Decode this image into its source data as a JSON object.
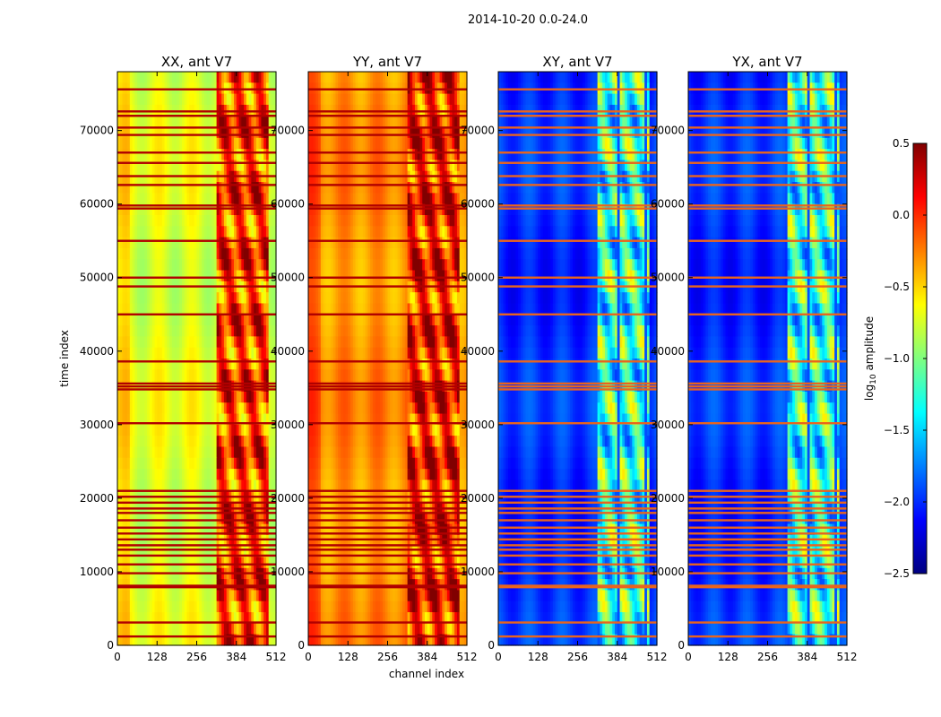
{
  "chart_data": {
    "type": "heatmap",
    "suptitle": "2014-10-20 0.0-24.0",
    "xlabel": "channel index",
    "ylabel": "time index",
    "xlim": [
      0,
      512
    ],
    "ylim": [
      0,
      78000
    ],
    "xticks": [
      0,
      128,
      256,
      384,
      512
    ],
    "yticks": [
      0,
      10000,
      20000,
      30000,
      40000,
      50000,
      60000,
      70000
    ],
    "colormap": "jet",
    "colorbar": {
      "label": "log10 amplitude",
      "label_base": "log",
      "label_sub": "10",
      "label_rest": " amplitude",
      "range": [
        -2.5,
        0.5
      ],
      "ticks": [
        "0.5",
        "0.0",
        "−0.5",
        "−1.0",
        "−1.5",
        "−2.0",
        "−2.5"
      ],
      "tick_values": [
        0.5,
        0.0,
        -0.5,
        -1.0,
        -1.5,
        -2.0,
        -2.5
      ]
    },
    "panels": [
      {
        "title": "XX, ant V7",
        "base": -0.72,
        "band": -0.05,
        "cross": false
      },
      {
        "title": "YY, ant V7",
        "base": -0.3,
        "band": 0.05,
        "cross": false
      },
      {
        "title": "XY, ant V7",
        "base": -2.0,
        "band": -1.25,
        "cross": true
      },
      {
        "title": "YX, ant V7",
        "base": -2.0,
        "band": -1.25,
        "cross": true
      }
    ],
    "band_channels": [
      320,
      490
    ],
    "flagged_time_rows": [
      1200,
      3100,
      7900,
      8100,
      9800,
      11000,
      12200,
      13000,
      13600,
      14400,
      15200,
      16000,
      17000,
      18000,
      18600,
      19400,
      20200,
      21000,
      30200,
      34800,
      35200,
      35600,
      38600,
      45000,
      48800,
      50000,
      55000,
      59400,
      59800,
      62600,
      63800,
      65600,
      67000,
      69400,
      70400,
      72000,
      72600,
      75600
    ]
  }
}
